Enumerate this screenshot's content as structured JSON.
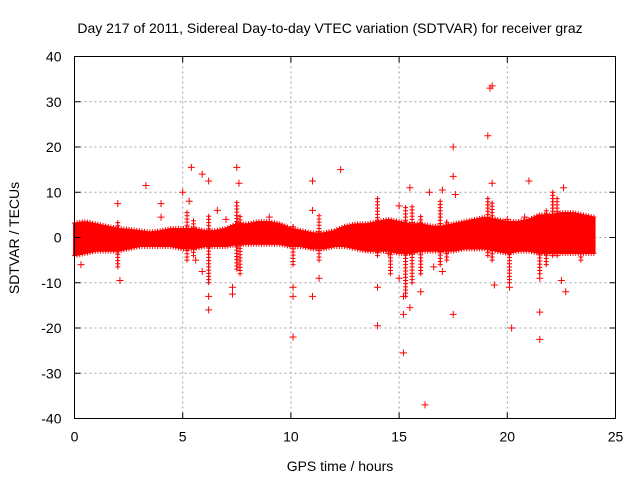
{
  "chart_data": {
    "type": "scatter",
    "title": "Day 217 of 2011, Sidereal Day-to-day VTEC variation (SDTVAR) for receiver graz",
    "xlabel": "GPS time / hours",
    "ylabel": "SDTVAR / TECUs",
    "xlim": [
      0,
      25
    ],
    "ylim": [
      -40,
      40
    ],
    "grid": true,
    "marker": "+",
    "marker_color": "#ff0000",
    "x_ticks": [
      "0",
      "5",
      "10",
      "15",
      "20",
      "25"
    ],
    "y_ticks": [
      "40",
      "30",
      "20",
      "10",
      "0",
      "-10",
      "-20",
      "-30",
      "-40"
    ],
    "band": {
      "hours": [
        0,
        0.5,
        1,
        1.5,
        2,
        2.5,
        3,
        3.5,
        4,
        4.5,
        5,
        5.5,
        6,
        6.5,
        7,
        7.5,
        8,
        8.5,
        9,
        9.5,
        10,
        10.5,
        11,
        11.5,
        12,
        12.5,
        13,
        13.5,
        14,
        14.5,
        15,
        15.5,
        16,
        16.5,
        17,
        17.5,
        18,
        18.5,
        19,
        19.5,
        20,
        20.5,
        21,
        21.5,
        22,
        22.5,
        23,
        23.5,
        24
      ],
      "upper": [
        3.2,
        3.5,
        3.0,
        2.5,
        2.0,
        1.8,
        1.5,
        1.2,
        1.5,
        2.0,
        2.0,
        2.0,
        1.5,
        1.5,
        2.0,
        3.0,
        3.0,
        3.5,
        3.5,
        3.0,
        2.0,
        1.5,
        1.0,
        1.0,
        1.5,
        2.5,
        3.0,
        3.0,
        3.5,
        4.0,
        3.5,
        3.0,
        3.0,
        2.5,
        2.5,
        3.0,
        3.5,
        4.0,
        4.5,
        4.0,
        3.5,
        3.5,
        4.0,
        5.0,
        5.0,
        5.5,
        5.5,
        5.0,
        4.5
      ],
      "lower": [
        -4.0,
        -3.5,
        -3.0,
        -3.0,
        -3.0,
        -2.5,
        -2.0,
        -2.0,
        -2.0,
        -2.0,
        -2.5,
        -2.5,
        -2.0,
        -2.0,
        -2.0,
        -1.5,
        -1.5,
        -1.5,
        -1.5,
        -1.5,
        -2.0,
        -2.0,
        -2.5,
        -2.5,
        -2.0,
        -2.0,
        -2.5,
        -3.0,
        -3.0,
        -3.0,
        -3.5,
        -3.5,
        -3.0,
        -3.0,
        -3.0,
        -3.0,
        -2.5,
        -2.5,
        -2.5,
        -3.0,
        -3.5,
        -3.0,
        -3.0,
        -3.5,
        -3.5,
        -3.5,
        -3.5,
        -3.5,
        -3.5
      ]
    },
    "spikes": [
      {
        "x": 2.0,
        "y_min": -6.5,
        "y_max": 3.5
      },
      {
        "x": 5.2,
        "y_min": -5.0,
        "y_max": 6.0
      },
      {
        "x": 5.5,
        "y_min": -4.0,
        "y_max": 4.0
      },
      {
        "x": 6.2,
        "y_min": -10.0,
        "y_max": 5.0
      },
      {
        "x": 7.5,
        "y_min": -7.0,
        "y_max": 8.0
      },
      {
        "x": 7.65,
        "y_min": -8.0,
        "y_max": 5.0
      },
      {
        "x": 10.1,
        "y_min": -6.0,
        "y_max": 3.0
      },
      {
        "x": 11.3,
        "y_min": -5.0,
        "y_max": 5.0
      },
      {
        "x": 14.0,
        "y_min": -4.0,
        "y_max": 9.0
      },
      {
        "x": 14.6,
        "y_min": -8.0,
        "y_max": 3.0
      },
      {
        "x": 15.3,
        "y_min": -13.0,
        "y_max": 7.0
      },
      {
        "x": 15.6,
        "y_min": -10.0,
        "y_max": 7.0
      },
      {
        "x": 16.0,
        "y_min": -8.0,
        "y_max": 5.0
      },
      {
        "x": 16.9,
        "y_min": -6.0,
        "y_max": 8.0
      },
      {
        "x": 17.2,
        "y_min": -5.0,
        "y_max": 4.0
      },
      {
        "x": 19.1,
        "y_min": -4.0,
        "y_max": 9.0
      },
      {
        "x": 19.3,
        "y_min": -5.0,
        "y_max": 8.0
      },
      {
        "x": 20.1,
        "y_min": -10.0,
        "y_max": 3.0
      },
      {
        "x": 21.5,
        "y_min": -8.0,
        "y_max": 5.0
      },
      {
        "x": 21.8,
        "y_min": -6.0,
        "y_max": 6.0
      },
      {
        "x": 22.1,
        "y_min": -4.0,
        "y_max": 10.0
      },
      {
        "x": 22.3,
        "y_min": -4.0,
        "y_max": 9.0
      },
      {
        "x": 23.4,
        "y_min": -5.0,
        "y_max": 5.0
      }
    ],
    "outliers": [
      [
        0.3,
        -6.0
      ],
      [
        2.0,
        7.5
      ],
      [
        2.1,
        -9.5
      ],
      [
        3.3,
        11.5
      ],
      [
        4.0,
        7.5
      ],
      [
        4.0,
        4.5
      ],
      [
        5.0,
        10.0
      ],
      [
        5.3,
        8.0
      ],
      [
        5.4,
        15.5
      ],
      [
        5.6,
        -5.0
      ],
      [
        5.9,
        14.0
      ],
      [
        5.9,
        -7.5
      ],
      [
        6.2,
        12.5
      ],
      [
        6.2,
        -13.0
      ],
      [
        6.2,
        -16.0
      ],
      [
        6.6,
        6.0
      ],
      [
        7.0,
        4.0
      ],
      [
        7.3,
        -11.0
      ],
      [
        7.3,
        -12.5
      ],
      [
        7.5,
        15.5
      ],
      [
        7.6,
        12.0
      ],
      [
        9.0,
        4.5
      ],
      [
        10.1,
        -11.0
      ],
      [
        10.1,
        -13.0
      ],
      [
        10.1,
        -22.0
      ],
      [
        11.0,
        12.5
      ],
      [
        11.0,
        6.0
      ],
      [
        11.0,
        -13.0
      ],
      [
        11.3,
        -9.0
      ],
      [
        12.3,
        15.0
      ],
      [
        14.0,
        -11.0
      ],
      [
        14.0,
        -19.5
      ],
      [
        14.5,
        -3.5
      ],
      [
        15.0,
        7.0
      ],
      [
        15.0,
        -9.0
      ],
      [
        15.2,
        -25.5
      ],
      [
        15.2,
        -13.0
      ],
      [
        15.2,
        -17.0
      ],
      [
        15.5,
        11.0
      ],
      [
        15.5,
        -15.5
      ],
      [
        16.0,
        -12.0
      ],
      [
        16.2,
        -37.0
      ],
      [
        16.4,
        10.0
      ],
      [
        16.6,
        -6.5
      ],
      [
        17.0,
        10.5
      ],
      [
        17.0,
        -7.5
      ],
      [
        17.5,
        20.0
      ],
      [
        17.5,
        13.5
      ],
      [
        17.5,
        -17.0
      ],
      [
        17.6,
        9.5
      ],
      [
        19.1,
        22.5
      ],
      [
        19.2,
        33.0
      ],
      [
        19.3,
        33.5
      ],
      [
        19.3,
        12.0
      ],
      [
        19.4,
        -10.5
      ],
      [
        20.0,
        4.0
      ],
      [
        20.1,
        -11.0
      ],
      [
        20.2,
        -20.0
      ],
      [
        20.8,
        4.5
      ],
      [
        21.0,
        12.5
      ],
      [
        21.5,
        -16.5
      ],
      [
        21.5,
        -22.5
      ],
      [
        21.5,
        -9.0
      ],
      [
        22.6,
        11.0
      ],
      [
        22.7,
        -12.0
      ],
      [
        22.5,
        -9.5
      ]
    ]
  }
}
